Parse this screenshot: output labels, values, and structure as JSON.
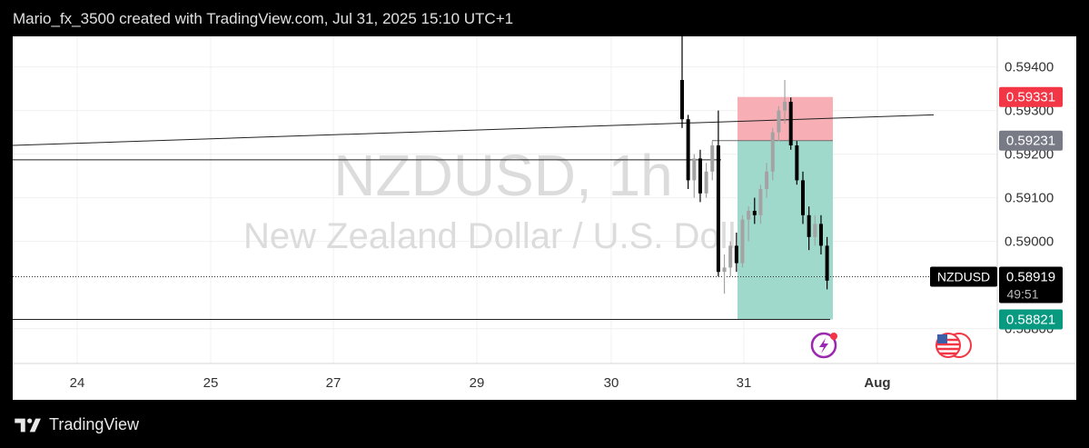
{
  "header": {
    "caption": "Mario_fx_3500 created with TradingView.com, Jul 31, 2025 15:10 UTC+1"
  },
  "footer": {
    "brand": "TradingView",
    "logo_icon": "tradingview-logo-icon"
  },
  "chart_data": {
    "type": "candlestick",
    "symbol": "NZDUSD",
    "interval": "1h",
    "watermark_line1": "NZDUSD, 1h",
    "watermark_line2": "New Zealand Dollar / U.S. Dollar",
    "x_ticks": [
      "24",
      "25",
      "27",
      "29",
      "30",
      "31",
      "Aug"
    ],
    "y_ticks": [
      "0.59400",
      "0.59300",
      "0.59200",
      "0.59100",
      "0.59000",
      "0.58800"
    ],
    "ylim": [
      0.5872,
      0.5947
    ],
    "current_price": {
      "symbol_label": "NZDUSD",
      "value": "0.58919",
      "countdown": "49:51",
      "price": 0.58919
    },
    "position": {
      "type": "short",
      "stop_loss": {
        "label": "0.59331",
        "price": 0.59331
      },
      "entry": {
        "label": "0.59231",
        "price": 0.59231
      },
      "take_profit": {
        "label": "0.58821",
        "price": 0.58821
      }
    },
    "horizontal_lines": [
      0.59187,
      0.58821
    ],
    "trend_line": {
      "start_price": 0.5922,
      "end_price": 0.5929
    },
    "candles": [
      {
        "o": 0.5937,
        "h": 0.5947,
        "l": 0.5926,
        "c": 0.5928
      },
      {
        "o": 0.5928,
        "h": 0.5929,
        "l": 0.5912,
        "c": 0.5914
      },
      {
        "o": 0.5914,
        "h": 0.592,
        "l": 0.591,
        "c": 0.5919
      },
      {
        "o": 0.5919,
        "h": 0.5921,
        "l": 0.5909,
        "c": 0.5911
      },
      {
        "o": 0.5911,
        "h": 0.5918,
        "l": 0.591,
        "c": 0.5916
      },
      {
        "o": 0.5916,
        "h": 0.5923,
        "l": 0.5914,
        "c": 0.5922
      },
      {
        "o": 0.5922,
        "h": 0.593,
        "l": 0.5892,
        "c": 0.5893
      },
      {
        "o": 0.5893,
        "h": 0.5897,
        "l": 0.5888,
        "c": 0.5894
      },
      {
        "o": 0.5894,
        "h": 0.59,
        "l": 0.5892,
        "c": 0.5899
      },
      {
        "o": 0.5899,
        "h": 0.5902,
        "l": 0.5893,
        "c": 0.5895
      },
      {
        "o": 0.5895,
        "h": 0.5906,
        "l": 0.5894,
        "c": 0.5905
      },
      {
        "o": 0.5905,
        "h": 0.5908,
        "l": 0.59,
        "c": 0.5907
      },
      {
        "o": 0.5907,
        "h": 0.591,
        "l": 0.5904,
        "c": 0.5906
      },
      {
        "o": 0.5906,
        "h": 0.5913,
        "l": 0.5904,
        "c": 0.5912
      },
      {
        "o": 0.5912,
        "h": 0.5918,
        "l": 0.591,
        "c": 0.5916
      },
      {
        "o": 0.5916,
        "h": 0.5926,
        "l": 0.5914,
        "c": 0.5925
      },
      {
        "o": 0.5925,
        "h": 0.5931,
        "l": 0.5923,
        "c": 0.593
      },
      {
        "o": 0.593,
        "h": 0.5937,
        "l": 0.5927,
        "c": 0.5932
      },
      {
        "o": 0.5932,
        "h": 0.5933,
        "l": 0.5921,
        "c": 0.5922
      },
      {
        "o": 0.5922,
        "h": 0.5923,
        "l": 0.5913,
        "c": 0.5914
      },
      {
        "o": 0.5914,
        "h": 0.5916,
        "l": 0.5904,
        "c": 0.5906
      },
      {
        "o": 0.5906,
        "h": 0.5908,
        "l": 0.5898,
        "c": 0.5901
      },
      {
        "o": 0.5901,
        "h": 0.5906,
        "l": 0.5899,
        "c": 0.5904
      },
      {
        "o": 0.5904,
        "h": 0.5906,
        "l": 0.5897,
        "c": 0.5899
      },
      {
        "o": 0.5899,
        "h": 0.5901,
        "l": 0.5889,
        "c": 0.5891
      }
    ],
    "colors": {
      "up_candle": "#a3a3a3",
      "down_candle": "#000000",
      "stop_zone": "#f7aeb5",
      "profit_zone": "#9fd9cb",
      "stop_label_bg": "#f23645",
      "entry_label_bg": "#787b86",
      "profit_label_bg": "#089981",
      "watermark": "#dcdcdc"
    },
    "icons": [
      "lightning-indicator-icon",
      "us-flag-event-icon"
    ]
  }
}
